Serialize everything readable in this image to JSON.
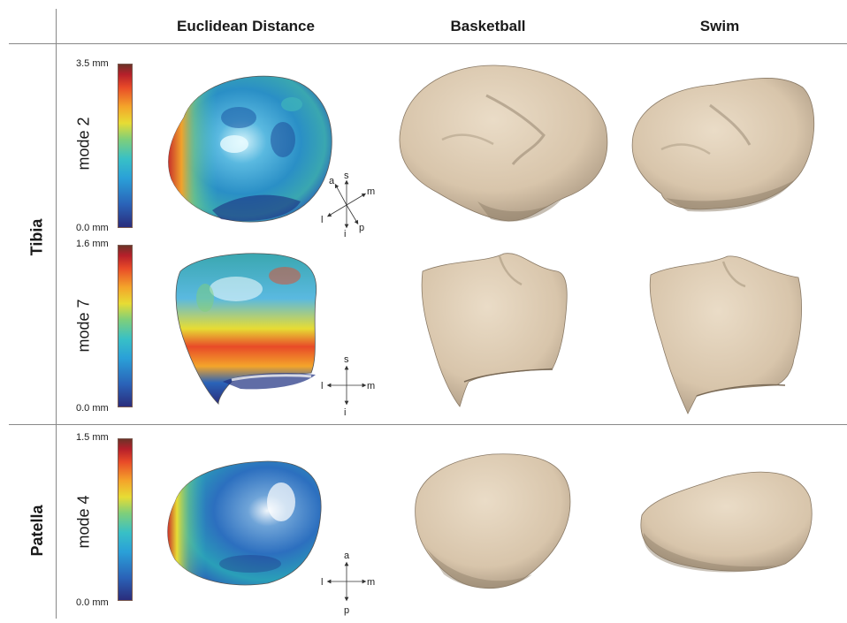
{
  "columns": [
    "Euclidean Distance",
    "Basketball",
    "Swim"
  ],
  "rows": [
    {
      "group": "Tibia",
      "modes": [
        {
          "mode": "mode 2",
          "max": "3.5 mm",
          "min": "0.0 mm",
          "axes": {
            "a": "a",
            "s": "s",
            "m": "m",
            "l": "l",
            "i": "i",
            "p": "p"
          }
        },
        {
          "mode": "mode 7",
          "max": "1.6 mm",
          "min": "0.0 mm",
          "axes": {
            "s": "s",
            "l": "l",
            "m": "m",
            "i": "i"
          }
        }
      ]
    },
    {
      "group": "Patella",
      "modes": [
        {
          "mode": "mode 4",
          "max": "1.5 mm",
          "min": "0.0 mm",
          "axes": {
            "a": "a",
            "l": "l",
            "m": "m",
            "p": "p"
          }
        }
      ]
    }
  ],
  "colors": {
    "bone": "#dccab2",
    "bone_shadow": "#a89680",
    "heat_low": "#2a2d7c",
    "heat_mid": "#38c0c6",
    "heat_high": "#b51f2a"
  }
}
